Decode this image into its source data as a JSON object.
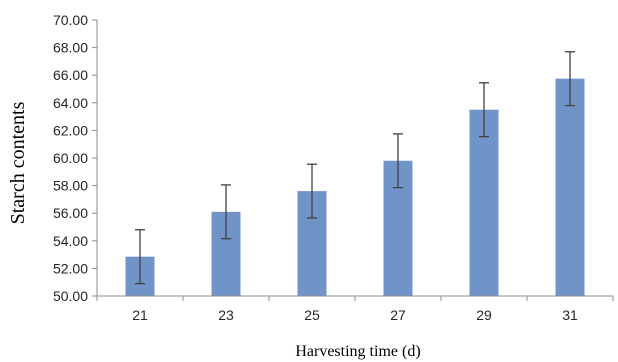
{
  "chart_data": {
    "type": "bar",
    "categories": [
      "21",
      "23",
      "25",
      "27",
      "29",
      "31"
    ],
    "values": [
      52.85,
      56.1,
      57.6,
      59.8,
      63.5,
      65.75
    ],
    "errors": [
      1.95,
      1.95,
      1.95,
      1.95,
      1.95,
      1.95
    ],
    "title": "",
    "xlabel": "Harvesting time (d)",
    "ylabel": "Starch contents",
    "ylim": [
      50,
      70
    ],
    "yticks": [
      "50.00",
      "52.00",
      "54.00",
      "56.00",
      "58.00",
      "60.00",
      "62.00",
      "64.00",
      "66.00",
      "68.00",
      "70.00"
    ],
    "grid": false,
    "legend": "none",
    "bar_color": "#7094c8",
    "error_bar_color": "#404040",
    "axis_color": "#8c8c8c"
  }
}
